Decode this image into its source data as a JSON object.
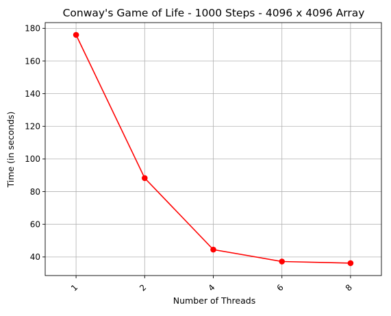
{
  "chart_data": {
    "type": "line",
    "title": "Conway's Game of Life - 1000 Steps - 4096 x 4096 Array",
    "xlabel": "Number of Threads",
    "ylabel": "Time (in seconds)",
    "categories": [
      "1",
      "2",
      "4",
      "6",
      "8"
    ],
    "ylim": [
      28.6,
      183.5
    ],
    "yticks": [
      40,
      60,
      80,
      100,
      120,
      140,
      160,
      180
    ],
    "grid": true,
    "series": [
      {
        "values": [
          176.0,
          88.3,
          44.5,
          37.2,
          36.2
        ],
        "color": "#ff0000",
        "marker": "circle"
      }
    ]
  }
}
